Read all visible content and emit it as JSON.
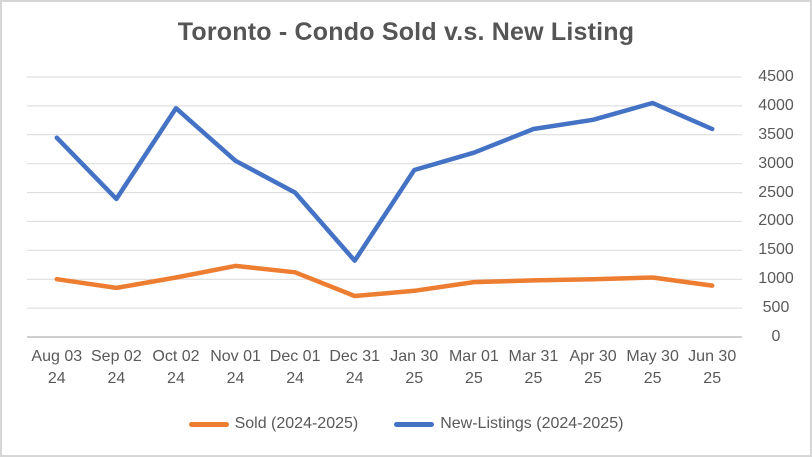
{
  "title": "Toronto - Condo Sold v.s. New Listing",
  "colors": {
    "sold": "#ED7D31",
    "new_listings": "#4472C4",
    "gridline": "#D9D9D9",
    "axis_line": "#BFBFBF",
    "label_text": "#595959",
    "title_text": "#555555",
    "background": "#FFFFFF",
    "frame_border": "#D6D6D6"
  },
  "chart_data": {
    "type": "line",
    "title": "Toronto - Condo Sold v.s. New Listing",
    "categories": [
      "Aug 03 24",
      "Sep 02 24",
      "Oct 02 24",
      "Nov 01 24",
      "Dec 01 24",
      "Dec 31 24",
      "Jan 30 25",
      "Mar 01 25",
      "Mar 31 25",
      "Apr 30 25",
      "May 30 25",
      "Jun 30 25"
    ],
    "series": [
      {
        "id": "sold",
        "name": "Sold (2024-2025)",
        "color": "#ED7D31",
        "values": [
          1000,
          850,
          1030,
          1230,
          1120,
          710,
          800,
          950,
          980,
          1000,
          1030,
          890
        ]
      },
      {
        "id": "new-listings",
        "name": "New-Listings (2024-2025)",
        "color": "#4472C4",
        "values": [
          3450,
          2390,
          3960,
          3050,
          2500,
          1320,
          2890,
          3190,
          3600,
          3760,
          4050,
          3600
        ]
      }
    ],
    "xlabel": "",
    "ylabel": "",
    "ylim": [
      0,
      4500
    ],
    "yticks": [
      0,
      500,
      1000,
      1500,
      2000,
      2500,
      3000,
      3500,
      4000,
      4500
    ],
    "y_axis_side": "right",
    "grid": true,
    "legend_position": "bottom"
  }
}
